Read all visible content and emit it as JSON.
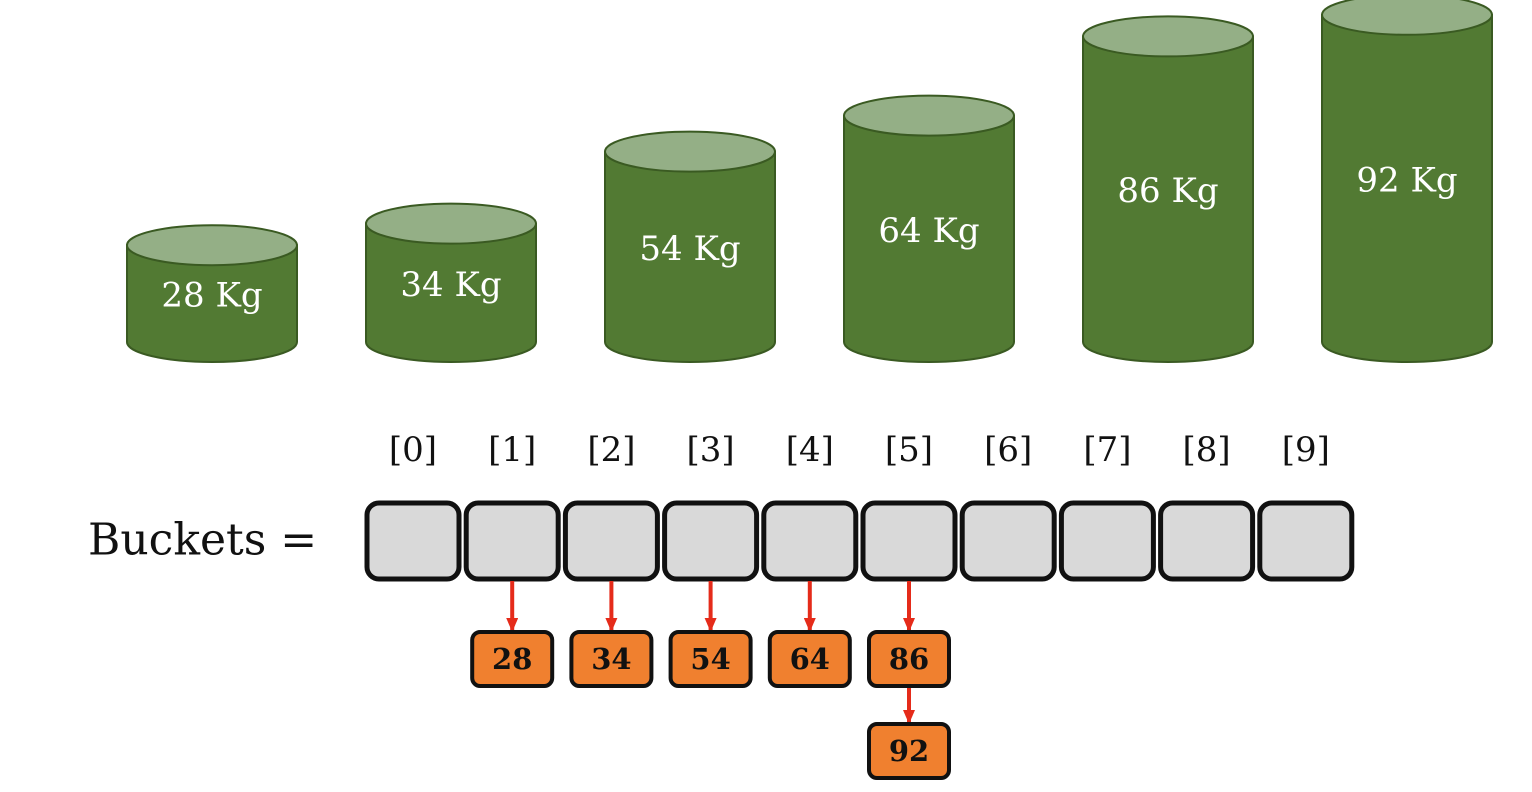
{
  "colors": {
    "cylinder_body": "#527a33",
    "cylinder_top": "#94af86",
    "cylinder_stroke": "#3a5a22",
    "bucket_fill": "#d9d9d9",
    "bucket_stroke": "#111111",
    "node_fill": "#f0802f",
    "node_stroke": "#111111",
    "arrow": "#e52b1a"
  },
  "weights": [
    {
      "label": "28 Kg",
      "value": 28
    },
    {
      "label": "34 Kg",
      "value": 34
    },
    {
      "label": "54 Kg",
      "value": 54
    },
    {
      "label": "64 Kg",
      "value": 64
    },
    {
      "label": "86 Kg",
      "value": 86
    },
    {
      "label": "92 Kg",
      "value": 92
    }
  ],
  "buckets": {
    "label": "Buckets =",
    "indices": [
      "[0]",
      "[1]",
      "[2]",
      "[3]",
      "[4]",
      "[5]",
      "[6]",
      "[7]",
      "[8]",
      "[9]"
    ]
  },
  "bucket_contents": [
    {
      "bucket": 1,
      "items": [
        "28"
      ]
    },
    {
      "bucket": 2,
      "items": [
        "34"
      ]
    },
    {
      "bucket": 3,
      "items": [
        "54"
      ]
    },
    {
      "bucket": 4,
      "items": [
        "64"
      ]
    },
    {
      "bucket": 5,
      "items": [
        "86",
        "92"
      ]
    }
  ]
}
